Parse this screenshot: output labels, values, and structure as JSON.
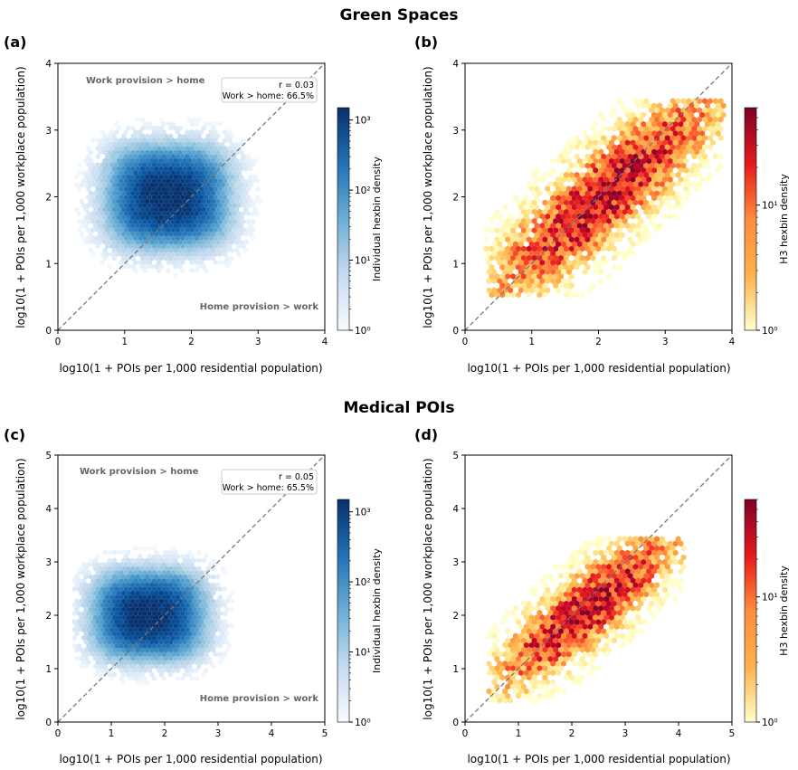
{
  "sections": [
    {
      "title": "Green Spaces"
    },
    {
      "title": "Medical POIs"
    }
  ],
  "chart_data": [
    {
      "type": "heatmap",
      "panel_label": "(a)",
      "section": "Green Spaces",
      "subtype": "hexbin",
      "xlabel": "log10(1 + POIs per 1,000 residential population)",
      "ylabel": "log10(1 + POIs per 1,000 workplace population)",
      "xlim": [
        0,
        4
      ],
      "ylim": [
        0,
        4
      ],
      "xticks": [
        "0",
        "1",
        "2",
        "3",
        "4"
      ],
      "yticks": [
        "0",
        "1",
        "2",
        "3",
        "4"
      ],
      "diagonal": "y = x",
      "density_peak": {
        "x": 1.65,
        "y": 2.0
      },
      "density_spread": {
        "x": 0.65,
        "y": 0.55
      },
      "extent": {
        "x": [
          0.2,
          3.2
        ],
        "y": [
          0.3,
          3.3
        ]
      },
      "annotations": [
        "Work provision > home",
        "Home provision > work"
      ],
      "stats": {
        "r": "r = 0.03",
        "share": "Work > home: 66.5%"
      },
      "colorbar": {
        "label": "Individual hexbin density",
        "scale": "log",
        "range": [
          1,
          1500
        ],
        "ticks": [
          "10⁰",
          "10¹",
          "10²",
          "10³"
        ],
        "colormap": "Blues"
      }
    },
    {
      "type": "heatmap",
      "panel_label": "(b)",
      "section": "Green Spaces",
      "subtype": "hexbin",
      "xlabel": "log10(1 + POIs per 1,000 residential population)",
      "ylabel": "log10(1 + POIs per 1,000 workplace population)",
      "xlim": [
        0,
        4
      ],
      "ylim": [
        0,
        4
      ],
      "xticks": [
        "0",
        "1",
        "2",
        "3",
        "4"
      ],
      "yticks": [
        "0",
        "1",
        "2",
        "3",
        "4"
      ],
      "diagonal": "y = x",
      "trend": {
        "slope": 0.8,
        "intercept": 0.35
      },
      "density_peak": {
        "x": 2.1,
        "y": 2.0
      },
      "extent": {
        "x": [
          0.3,
          3.9
        ],
        "y": [
          0.5,
          3.5
        ]
      },
      "colorbar": {
        "label": "H3 hexbin density",
        "scale": "log",
        "range": [
          1,
          60
        ],
        "ticks": [
          "10⁰",
          "10¹"
        ],
        "colormap": "YlOrRd"
      }
    },
    {
      "type": "heatmap",
      "panel_label": "(c)",
      "section": "Medical POIs",
      "subtype": "hexbin",
      "xlabel": "log10(1 + POIs per 1,000 residential population)",
      "ylabel": "log10(1 + POIs per 1,000 workplace population)",
      "xlim": [
        0,
        5
      ],
      "ylim": [
        0,
        5
      ],
      "xticks": [
        "0",
        "1",
        "2",
        "3",
        "4",
        "5"
      ],
      "yticks": [
        "0",
        "1",
        "2",
        "3",
        "4",
        "5"
      ],
      "diagonal": "y = x",
      "density_peak": {
        "x": 1.7,
        "y": 2.0
      },
      "density_spread": {
        "x": 0.75,
        "y": 0.6
      },
      "extent": {
        "x": [
          0.3,
          3.8
        ],
        "y": [
          0.45,
          3.4
        ]
      },
      "annotations": [
        "Work provision > home",
        "Home provision > work"
      ],
      "stats": {
        "r": "r = 0.05",
        "share": "Work > home: 65.5%"
      },
      "colorbar": {
        "label": "Individual hexbin density",
        "scale": "log",
        "range": [
          1,
          1500
        ],
        "ticks": [
          "10⁰",
          "10¹",
          "10²",
          "10³"
        ],
        "colormap": "Blues"
      }
    },
    {
      "type": "heatmap",
      "panel_label": "(d)",
      "section": "Medical POIs",
      "subtype": "hexbin",
      "xlabel": "log10(1 + POIs per 1,000 residential population)",
      "ylabel": "log10(1 + POIs per 1,000 workplace population)",
      "xlim": [
        0,
        5
      ],
      "ylim": [
        0,
        5
      ],
      "xticks": [
        "0",
        "1",
        "2",
        "3",
        "4",
        "5"
      ],
      "yticks": [
        "0",
        "1",
        "2",
        "3",
        "4",
        "5"
      ],
      "diagonal": "y = x",
      "trend": {
        "slope": 0.75,
        "intercept": 0.4
      },
      "density_peak": {
        "x": 2.3,
        "y": 2.1
      },
      "extent": {
        "x": [
          0.4,
          4.1
        ],
        "y": [
          0.4,
          3.5
        ]
      },
      "colorbar": {
        "label": "H3 hexbin density",
        "scale": "log",
        "range": [
          1,
          60
        ],
        "ticks": [
          "10⁰",
          "10¹"
        ],
        "colormap": "YlOrRd"
      }
    }
  ]
}
